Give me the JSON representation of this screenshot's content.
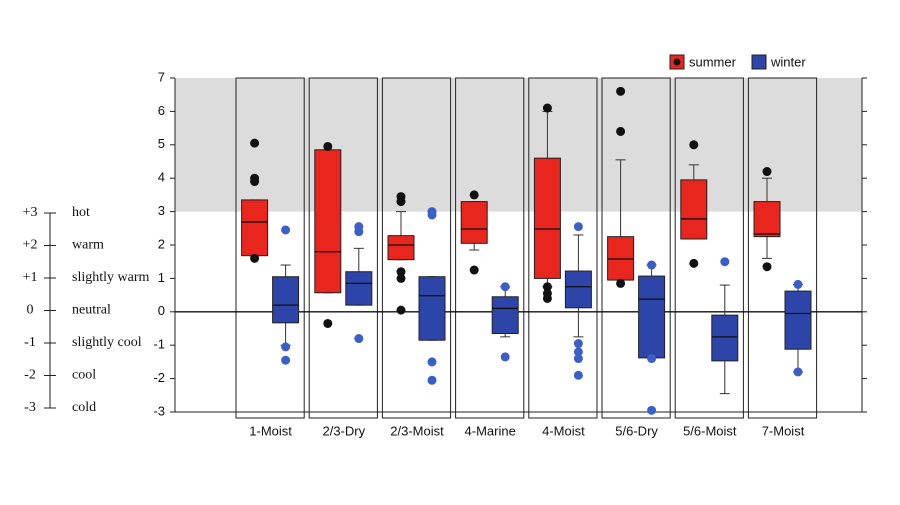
{
  "chart_data": {
    "type": "box",
    "categories": [
      "1-Moist",
      "2/3-Dry",
      "2/3-Moist",
      "4-Marine",
      "4-Moist",
      "5/6-Dry",
      "5/6-Moist",
      "7-Moist"
    ],
    "ylim": [
      -3,
      7
    ],
    "yticks": [
      -3,
      -2,
      -1,
      0,
      1,
      2,
      3,
      4,
      5,
      6,
      7
    ],
    "shade_above": 3,
    "reference_line": 0,
    "series": [
      {
        "name": "summer",
        "color": "#e8261e",
        "outlier_color": "#111111",
        "boxes": [
          {
            "low": 1.68,
            "q1": 1.68,
            "median": 2.69,
            "q3": 3.35,
            "high": 3.35,
            "outliers": [
              5.05,
              4.0,
              3.9,
              1.6
            ]
          },
          {
            "low": 0.57,
            "q1": 0.57,
            "median": 1.8,
            "q3": 4.85,
            "high": 4.85,
            "outliers": [
              4.95,
              -0.35
            ]
          },
          {
            "low": 1.56,
            "q1": 1.56,
            "median": 2.0,
            "q3": 2.28,
            "high": 3.0,
            "outliers": [
              3.45,
              3.3,
              1.2,
              1.0,
              0.05
            ]
          },
          {
            "low": 1.85,
            "q1": 2.05,
            "median": 2.48,
            "q3": 3.3,
            "high": 3.3,
            "outliers": [
              3.5,
              1.25
            ]
          },
          {
            "low": 0.75,
            "q1": 1.0,
            "median": 2.48,
            "q3": 4.6,
            "high": 6.0,
            "outliers": [
              6.1,
              0.75,
              0.55,
              0.4
            ]
          },
          {
            "low": 0.95,
            "q1": 0.95,
            "median": 1.58,
            "q3": 2.25,
            "high": 4.55,
            "outliers": [
              6.6,
              5.4,
              0.85
            ]
          },
          {
            "low": 2.18,
            "q1": 2.18,
            "median": 2.78,
            "q3": 3.95,
            "high": 4.4,
            "outliers": [
              5.0,
              1.45
            ]
          },
          {
            "low": 1.6,
            "q1": 2.25,
            "median": 2.33,
            "q3": 3.3,
            "high": 4.0,
            "outliers": [
              4.2,
              1.35
            ]
          }
        ]
      },
      {
        "name": "winter",
        "color": "#2d44a8",
        "outlier_color": "#3b5fc8",
        "boxes": [
          {
            "low": -1.0,
            "q1": -0.33,
            "median": 0.2,
            "q3": 1.05,
            "high": 1.4,
            "outliers": [
              2.45,
              -1.05,
              -1.45
            ]
          },
          {
            "low": 0.2,
            "q1": 0.2,
            "median": 0.85,
            "q3": 1.2,
            "high": 1.9,
            "outliers": [
              2.55,
              2.4,
              -0.8
            ]
          },
          {
            "low": -0.85,
            "q1": -0.85,
            "median": 0.48,
            "q3": 1.05,
            "high": 1.05,
            "outliers": [
              3.0,
              2.9,
              -1.5,
              -2.05
            ]
          },
          {
            "low": -0.75,
            "q1": -0.65,
            "median": 0.1,
            "q3": 0.45,
            "high": 0.75,
            "outliers": [
              0.75,
              -1.35
            ]
          },
          {
            "low": -0.75,
            "q1": 0.12,
            "median": 0.75,
            "q3": 1.22,
            "high": 2.3,
            "outliers": [
              2.55,
              -0.95,
              -1.2,
              -1.4,
              -1.9
            ]
          },
          {
            "low": -1.38,
            "q1": -1.38,
            "median": 0.38,
            "q3": 1.07,
            "high": 1.4,
            "outliers": [
              1.4,
              -1.4,
              -2.95
            ]
          },
          {
            "low": -2.45,
            "q1": -1.47,
            "median": -0.75,
            "q3": -0.1,
            "high": 0.8,
            "outliers": [
              1.5
            ]
          },
          {
            "low": -1.8,
            "q1": -1.12,
            "median": -0.05,
            "q3": 0.62,
            "high": 0.82,
            "outliers": [
              0.82,
              -1.8
            ]
          }
        ]
      }
    ]
  },
  "comfort_scale": [
    {
      "code": "+3",
      "text": "hot"
    },
    {
      "code": "+2",
      "text": "warm"
    },
    {
      "code": "+1",
      "text": "slightly warm"
    },
    {
      "code": "0",
      "text": "neutral"
    },
    {
      "code": "-1",
      "text": "slightly cool"
    },
    {
      "code": "-2",
      "text": "cool"
    },
    {
      "code": "-3",
      "text": "cold"
    }
  ]
}
